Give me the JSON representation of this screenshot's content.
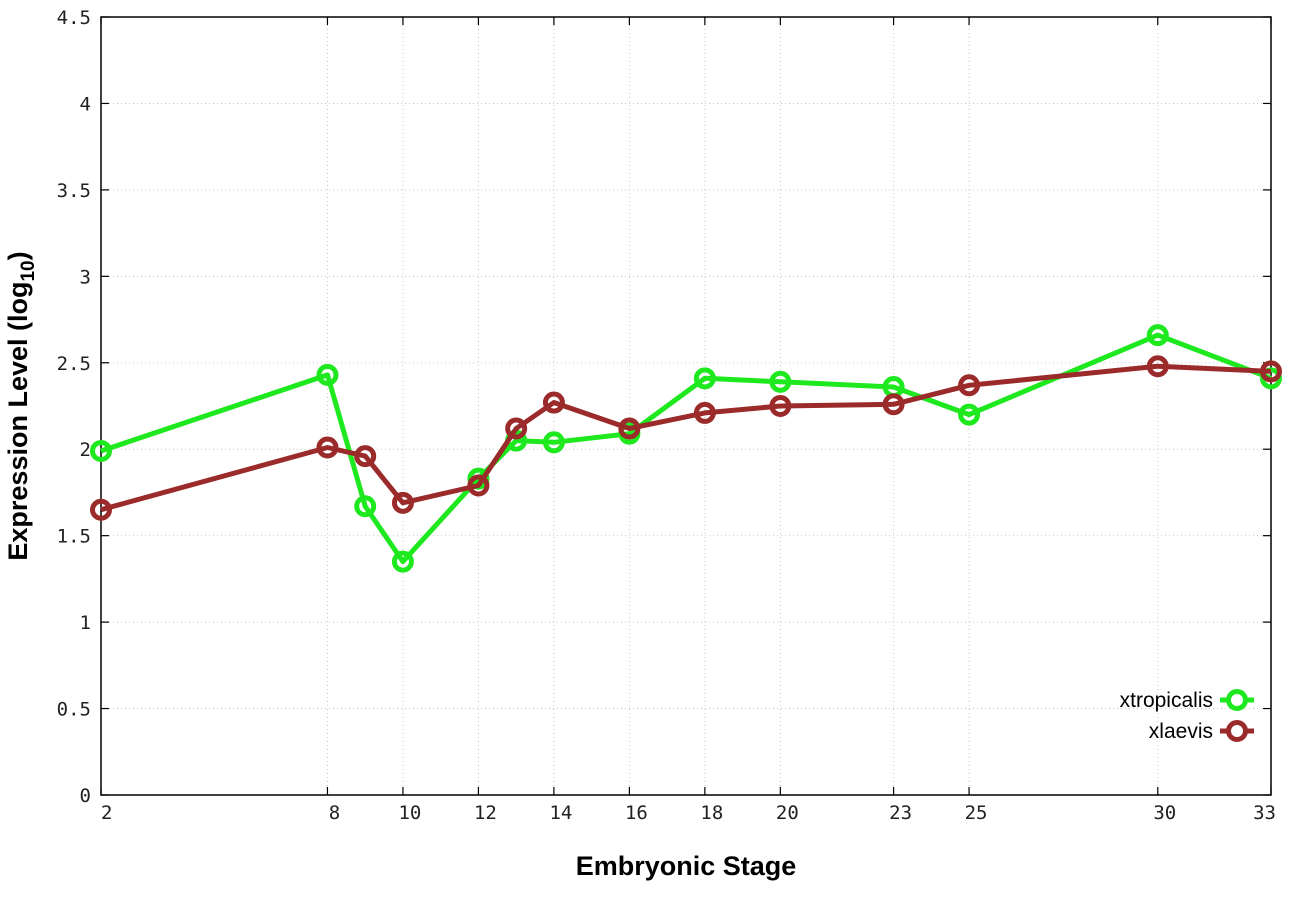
{
  "chart_data": {
    "type": "line",
    "xlabel": "Embryonic Stage",
    "ylabel": "Expression Level (log",
    "ylabel_subscript": "10",
    "ylabel_suffix": ")",
    "xlim": [
      2,
      33
    ],
    "ylim": [
      0,
      4.5
    ],
    "x_ticks": [
      2,
      8,
      10,
      12,
      14,
      16,
      18,
      20,
      23,
      25,
      30,
      33
    ],
    "x_tick_labels": [
      "2",
      "8",
      "10",
      "12",
      "14",
      "16",
      "18",
      "20",
      "23",
      "25",
      "30",
      "33"
    ],
    "y_ticks": [
      0,
      0.5,
      1,
      1.5,
      2,
      2.5,
      3,
      3.5,
      4,
      4.5
    ],
    "y_tick_labels": [
      "0",
      "0.5",
      "1",
      "1.5",
      "2",
      "2.5",
      "3",
      "3.5",
      "4",
      "4.5"
    ],
    "grid": true,
    "legend_position": "bottom-right",
    "series": [
      {
        "name": "xtropicalis",
        "color": "#1ee81e",
        "x": [
          2,
          8,
          9,
          10,
          12,
          13,
          14,
          16,
          18,
          20,
          23,
          25,
          30,
          33
        ],
        "y": [
          1.99,
          2.43,
          1.67,
          1.35,
          1.83,
          2.05,
          2.04,
          2.09,
          2.41,
          2.39,
          2.36,
          2.2,
          2.66,
          2.41
        ]
      },
      {
        "name": "xlaevis",
        "color": "#9b2a2a",
        "x": [
          2,
          8,
          9,
          10,
          12,
          13,
          14,
          16,
          18,
          20,
          23,
          25,
          30,
          33
        ],
        "y": [
          1.65,
          2.01,
          1.96,
          1.69,
          1.79,
          2.12,
          2.27,
          2.12,
          2.21,
          2.25,
          2.26,
          2.37,
          2.48,
          2.45
        ]
      }
    ]
  }
}
